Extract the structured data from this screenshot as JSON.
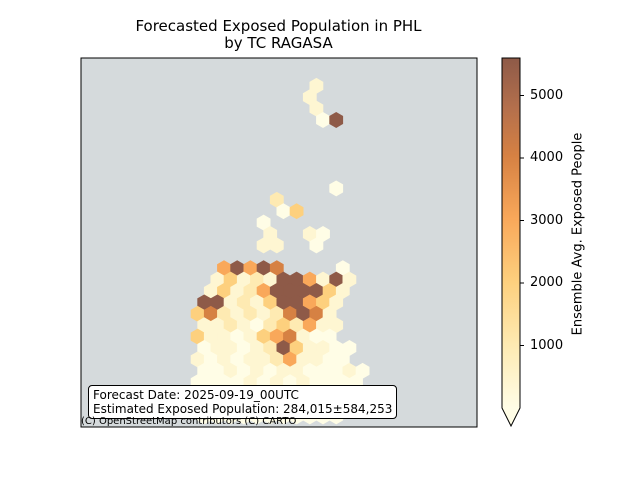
{
  "chart_data": {
    "type": "hexbin map",
    "title": "Forecasted Exposed Population in PHL",
    "subtitle": "by TC RAGASA",
    "colorbar": {
      "label": "Ensemble Avg. Exposed People",
      "ticks": [
        1000,
        2000,
        3000,
        4000,
        5000
      ],
      "range": [
        0,
        5600
      ],
      "extend": "min",
      "colors": [
        "#fffde6",
        "#feeab2",
        "#fdd07e",
        "#f9a85a",
        "#d68143",
        "#b36f4c",
        "#8e5a48"
      ]
    },
    "background_color": "#d5dadc",
    "info_box": {
      "line1": "Forecast Date: 2025-09-19_00UTC",
      "line2": "Estimated Exposed Population: 284,015±584,253"
    },
    "attribution": "(C) OpenStreetMap contributors (C) CARTO"
  }
}
